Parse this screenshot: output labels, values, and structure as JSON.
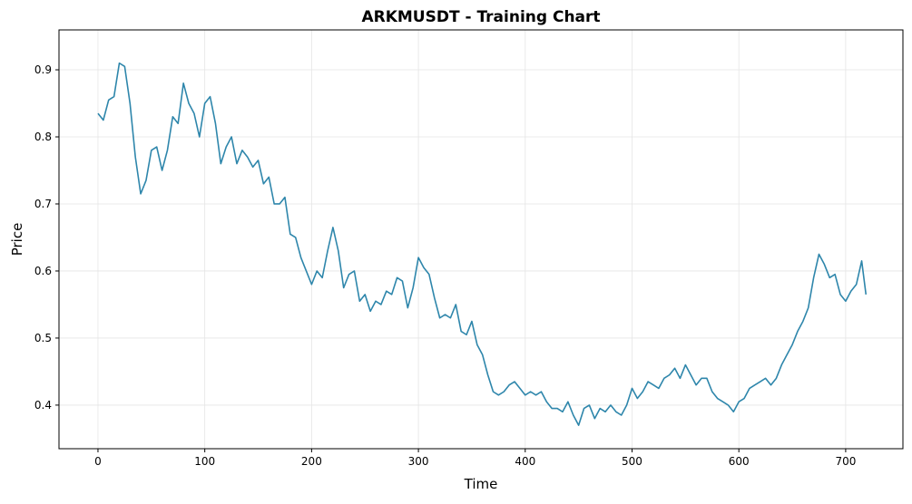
{
  "chart_data": {
    "type": "line",
    "title": "ARKMUSDT - Training Chart",
    "x_label": "Time",
    "y_label": "Price",
    "x": [
      0,
      5,
      10,
      15,
      20,
      25,
      30,
      35,
      40,
      45,
      50,
      55,
      60,
      65,
      70,
      75,
      80,
      85,
      90,
      95,
      100,
      105,
      110,
      115,
      120,
      125,
      130,
      135,
      140,
      145,
      150,
      155,
      160,
      165,
      170,
      175,
      180,
      185,
      190,
      195,
      200,
      205,
      210,
      215,
      220,
      225,
      230,
      235,
      240,
      245,
      250,
      255,
      260,
      265,
      270,
      275,
      280,
      285,
      290,
      295,
      300,
      305,
      310,
      315,
      320,
      325,
      330,
      335,
      340,
      345,
      350,
      355,
      360,
      365,
      370,
      375,
      380,
      385,
      390,
      395,
      400,
      405,
      410,
      415,
      420,
      425,
      430,
      435,
      440,
      445,
      450,
      455,
      460,
      465,
      470,
      475,
      480,
      485,
      490,
      495,
      500,
      505,
      510,
      515,
      520,
      525,
      530,
      535,
      540,
      545,
      550,
      555,
      560,
      565,
      570,
      575,
      580,
      585,
      590,
      595,
      600,
      605,
      610,
      615,
      620,
      625,
      630,
      635,
      640,
      645,
      650,
      655,
      660,
      665,
      670,
      675,
      680,
      685,
      690,
      695,
      700,
      705,
      710,
      715,
      719
    ],
    "series": [
      {
        "name": "Price",
        "color": "#2e86ab",
        "values": [
          0.835,
          0.825,
          0.855,
          0.86,
          0.91,
          0.905,
          0.85,
          0.77,
          0.715,
          0.735,
          0.78,
          0.785,
          0.75,
          0.78,
          0.83,
          0.82,
          0.88,
          0.85,
          0.835,
          0.8,
          0.85,
          0.86,
          0.82,
          0.76,
          0.785,
          0.8,
          0.76,
          0.78,
          0.77,
          0.755,
          0.765,
          0.73,
          0.74,
          0.7,
          0.7,
          0.71,
          0.655,
          0.65,
          0.62,
          0.6,
          0.58,
          0.6,
          0.59,
          0.63,
          0.665,
          0.63,
          0.575,
          0.595,
          0.6,
          0.555,
          0.565,
          0.54,
          0.555,
          0.55,
          0.57,
          0.565,
          0.59,
          0.585,
          0.545,
          0.575,
          0.62,
          0.605,
          0.595,
          0.56,
          0.53,
          0.535,
          0.53,
          0.55,
          0.51,
          0.505,
          0.525,
          0.49,
          0.475,
          0.445,
          0.42,
          0.415,
          0.42,
          0.43,
          0.435,
          0.425,
          0.415,
          0.42,
          0.415,
          0.42,
          0.405,
          0.395,
          0.395,
          0.39,
          0.405,
          0.385,
          0.37,
          0.395,
          0.4,
          0.38,
          0.395,
          0.39,
          0.4,
          0.39,
          0.385,
          0.4,
          0.425,
          0.41,
          0.42,
          0.435,
          0.43,
          0.425,
          0.44,
          0.445,
          0.455,
          0.44,
          0.46,
          0.445,
          0.43,
          0.44,
          0.44,
          0.42,
          0.41,
          0.405,
          0.4,
          0.39,
          0.405,
          0.41,
          0.425,
          0.43,
          0.435,
          0.44,
          0.43,
          0.44,
          0.46,
          0.475,
          0.49,
          0.51,
          0.525,
          0.545,
          0.59,
          0.625,
          0.61,
          0.59,
          0.595,
          0.565,
          0.555,
          0.57,
          0.58,
          0.615,
          0.565
        ]
      }
    ],
    "xlim": [
      -36.5,
      753.6
    ],
    "xticks": [
      0,
      100,
      200,
      300,
      400,
      500,
      600,
      700
    ],
    "ylim": [
      0.335,
      0.9595
    ],
    "yticks": [
      0.4,
      0.5,
      0.6,
      0.7,
      0.8,
      0.9
    ],
    "grid": true
  }
}
